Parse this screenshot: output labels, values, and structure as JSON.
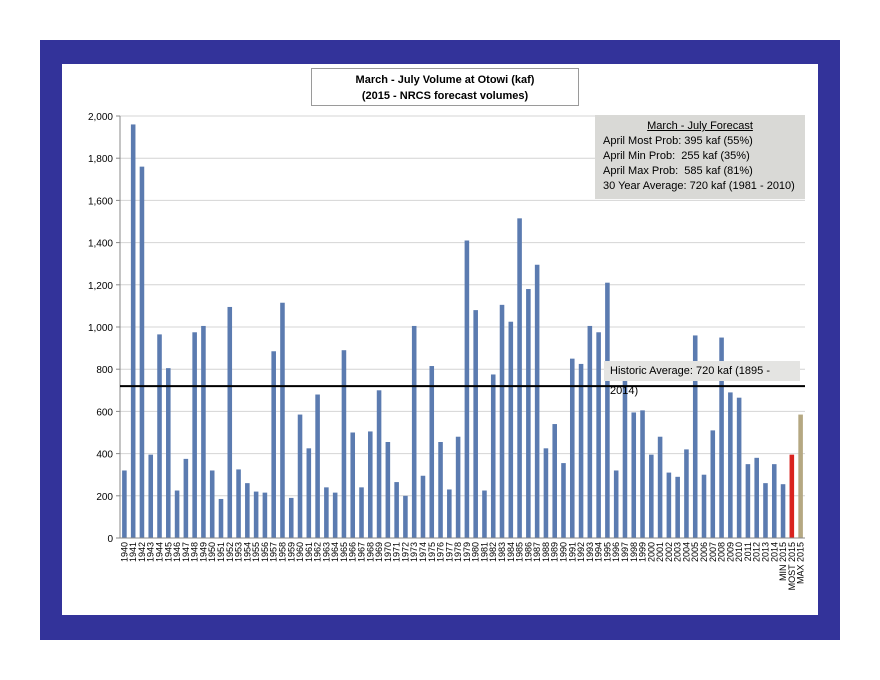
{
  "chart_data": {
    "type": "bar",
    "title": "March - July Volume at Otowi (kaf)",
    "subtitle": "(2015 - NRCS forecast volumes)",
    "xlabel": "",
    "ylabel": "",
    "ylim": [
      0,
      2000
    ],
    "yticks": [
      "0",
      "200",
      "400",
      "600",
      "800",
      "1,000",
      "1,200",
      "1,400",
      "1,600",
      "1,800",
      "2,000"
    ],
    "ytick_values": [
      0,
      200,
      400,
      600,
      800,
      1000,
      1200,
      1400,
      1600,
      1800,
      2000
    ],
    "gridlines": true,
    "categories": [
      "1940",
      "1941",
      "1942",
      "1943",
      "1944",
      "1945",
      "1946",
      "1947",
      "1948",
      "1949",
      "1950",
      "1951",
      "1952",
      "1953",
      "1954",
      "1955",
      "1956",
      "1957",
      "1958",
      "1959",
      "1960",
      "1961",
      "1962",
      "1963",
      "1964",
      "1965",
      "1966",
      "1967",
      "1968",
      "1969",
      "1970",
      "1971",
      "1972",
      "1973",
      "1974",
      "1975",
      "1976",
      "1977",
      "1978",
      "1979",
      "1980",
      "1981",
      "1982",
      "1983",
      "1984",
      "1985",
      "1986",
      "1987",
      "1988",
      "1989",
      "1990",
      "1991",
      "1992",
      "1993",
      "1994",
      "1995",
      "1996",
      "1997",
      "1998",
      "1999",
      "2000",
      "2001",
      "2002",
      "2003",
      "2004",
      "2005",
      "2006",
      "2007",
      "2008",
      "2009",
      "2010",
      "2011",
      "2012",
      "2013",
      "2014",
      "MIN 2015",
      "MOST 2015",
      "MAX 2015"
    ],
    "values": [
      320,
      1960,
      1760,
      395,
      965,
      805,
      225,
      375,
      975,
      1005,
      320,
      185,
      1095,
      325,
      260,
      220,
      215,
      885,
      1115,
      190,
      585,
      425,
      680,
      240,
      215,
      890,
      500,
      240,
      505,
      700,
      455,
      265,
      200,
      1005,
      295,
      815,
      455,
      230,
      480,
      1410,
      1080,
      225,
      775,
      1105,
      1025,
      1515,
      1180,
      1295,
      425,
      540,
      355,
      850,
      825,
      1005,
      975,
      1210,
      320,
      770,
      595,
      605,
      395,
      480,
      310,
      290,
      420,
      960,
      300,
      510,
      950,
      690,
      665,
      350,
      380,
      260,
      350,
      255,
      395,
      585
    ],
    "bar_color": "#5b7bb0",
    "special_colors": {
      "MIN 2015": "#5b7bb0",
      "MOST 2015": "#d9231f",
      "MAX 2015": "#b5a882"
    },
    "reference_line": {
      "value": 720,
      "label": "Historic Average: 720 kaf (1895 - 2014)",
      "color": "#000000"
    },
    "forecast_box": {
      "title": "March - July Forecast",
      "lines": [
        "April Most Prob: 395 kaf (55%)",
        "April Min Prob:  255 kaf (35%)",
        "April Max Prob:  585 kaf (81%)",
        "30 Year Average: 720 kaf (1981 - 2010)"
      ]
    }
  }
}
